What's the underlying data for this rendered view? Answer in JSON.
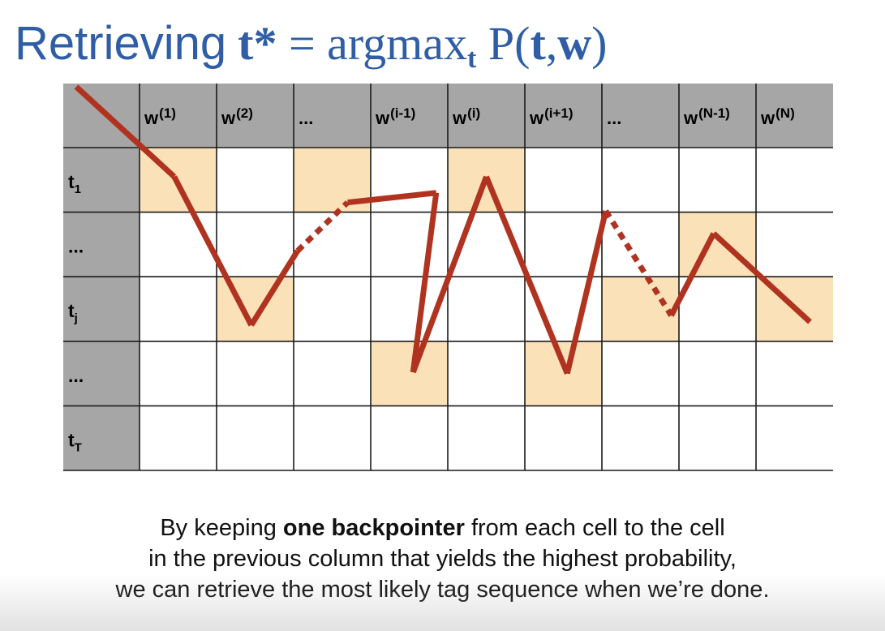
{
  "title": {
    "prefix": "Retrieving",
    "var": "t*",
    "eq": " = argmax",
    "sub": "t",
    "func": " P(",
    "arg1": "t",
    "comma": ",",
    "arg2": "w",
    "close": ")"
  },
  "columns": [
    {
      "base": "w",
      "sup": "(1)"
    },
    {
      "base": "w",
      "sup": "(2)"
    },
    {
      "base": "...",
      "sup": ""
    },
    {
      "base": "w",
      "sup": "(i-1)"
    },
    {
      "base": "w",
      "sup": "(i)"
    },
    {
      "base": "w",
      "sup": "(i+1)"
    },
    {
      "base": "...",
      "sup": ""
    },
    {
      "base": "w",
      "sup": "(N-1)"
    },
    {
      "base": "w",
      "sup": "(N)"
    }
  ],
  "rows": [
    {
      "base": "t",
      "sub": "1"
    },
    {
      "base": "...",
      "sub": ""
    },
    {
      "base": "t",
      "sub": "j"
    },
    {
      "base": "...",
      "sub": ""
    },
    {
      "base": "t",
      "sub": "T"
    }
  ],
  "highlighted_cells": [
    [
      0,
      0
    ],
    [
      1,
      2
    ],
    [
      2,
      0
    ],
    [
      3,
      3
    ],
    [
      4,
      0
    ],
    [
      5,
      3
    ],
    [
      6,
      2
    ],
    [
      7,
      1
    ],
    [
      8,
      2
    ]
  ],
  "path": [
    {
      "col": 0,
      "row": 0,
      "style": "solid"
    },
    {
      "col": 1,
      "row": 2,
      "style": "solid"
    },
    {
      "col": 3,
      "row": 3,
      "style": "solid"
    },
    {
      "col": 4,
      "row": 0,
      "style": "solid"
    },
    {
      "col": 5,
      "row": 3,
      "style": "solid"
    },
    {
      "col": 7,
      "row": 1,
      "style": "solid"
    },
    {
      "col": 8,
      "row": 2,
      "style": "solid"
    }
  ],
  "colors": {
    "header_bg": "#a6a6a6",
    "highlight": "#fbe1b8",
    "path": "#b03320",
    "grid": "#1a1a1a",
    "title": "#2f5ea6"
  },
  "caption": {
    "line1_pre": "By keeping ",
    "line1_bold": "one backpointer",
    "line1_post": " from each cell to the cell",
    "line2": "in the previous column that yields the highest probability,",
    "line3": "we can retrieve the most likely tag sequence when we’re done."
  }
}
